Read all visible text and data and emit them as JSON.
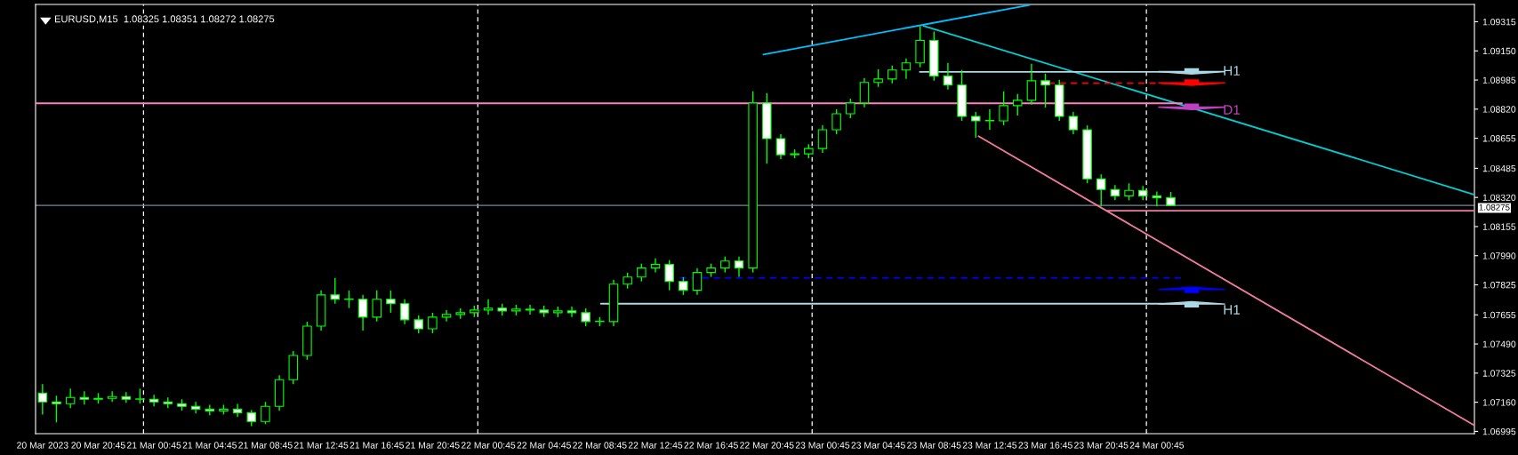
{
  "chart_data": {
    "type": "candlestick",
    "title": "EURUSD,M15  1.08325 1.08351 1.08272 1.08275",
    "color": "#00ff00",
    "x": [
      "2023-03-20T16:45",
      "2023-03-20T17:45",
      "2023-03-20T18:45",
      "2023-03-20T19:45",
      "2023-03-20T20:45",
      "2023-03-20T21:45",
      "2023-03-20T22:45",
      "2023-03-20T23:45",
      "2023-03-21T00:45",
      "2023-03-21T01:45",
      "2023-03-21T02:45",
      "2023-03-21T03:45",
      "2023-03-21T04:45",
      "2023-03-21T05:45",
      "2023-03-21T06:45",
      "2023-03-21T07:45",
      "2023-03-21T08:45",
      "2023-03-21T09:45",
      "2023-03-21T10:45",
      "2023-03-21T11:45",
      "2023-03-21T12:45",
      "2023-03-21T13:45",
      "2023-03-21T14:45",
      "2023-03-21T15:45",
      "2023-03-21T16:45",
      "2023-03-21T17:45",
      "2023-03-21T18:45",
      "2023-03-21T19:45",
      "2023-03-21T20:45",
      "2023-03-21T21:45",
      "2023-03-21T22:45",
      "2023-03-21T23:45",
      "2023-03-22T00:45",
      "2023-03-22T01:45",
      "2023-03-22T02:45",
      "2023-03-22T03:45",
      "2023-03-22T04:45",
      "2023-03-22T05:45",
      "2023-03-22T06:45",
      "2023-03-22T07:45",
      "2023-03-22T08:45",
      "2023-03-22T09:45",
      "2023-03-22T10:45",
      "2023-03-22T11:45",
      "2023-03-22T12:45",
      "2023-03-22T13:45",
      "2023-03-22T14:45",
      "2023-03-22T15:45",
      "2023-03-22T16:45",
      "2023-03-22T17:45",
      "2023-03-22T18:45",
      "2023-03-22T19:45",
      "2023-03-22T20:45",
      "2023-03-22T21:45",
      "2023-03-22T22:45",
      "2023-03-22T23:45",
      "2023-03-23T00:45",
      "2023-03-23T01:45",
      "2023-03-23T02:45",
      "2023-03-23T03:45",
      "2023-03-23T04:45",
      "2023-03-23T05:45",
      "2023-03-23T06:45",
      "2023-03-23T07:45",
      "2023-03-23T08:45",
      "2023-03-23T09:45",
      "2023-03-23T10:45",
      "2023-03-23T11:45",
      "2023-03-23T12:45",
      "2023-03-23T13:45",
      "2023-03-23T14:45",
      "2023-03-23T15:45",
      "2023-03-23T16:45",
      "2023-03-23T17:45",
      "2023-03-23T18:45",
      "2023-03-23T19:45",
      "2023-03-23T20:45",
      "2023-03-23T21:45",
      "2023-03-23T22:45",
      "2023-03-23T23:45",
      "2023-03-24T00:45",
      "2023-03-24T01:45"
    ],
    "ohlc": [
      [
        1.07212,
        1.07262,
        1.0709,
        1.07162
      ],
      [
        1.07162,
        1.07197,
        1.07046,
        1.07152
      ],
      [
        1.07152,
        1.07237,
        1.07127,
        1.07187
      ],
      [
        1.07187,
        1.07222,
        1.07147,
        1.07177
      ],
      [
        1.07177,
        1.07212,
        1.07152,
        1.07182
      ],
      [
        1.07182,
        1.07222,
        1.07162,
        1.07192
      ],
      [
        1.07192,
        1.07217,
        1.07157,
        1.07177
      ],
      [
        1.07177,
        1.07237,
        1.07152,
        1.07177
      ],
      [
        1.07177,
        1.07202,
        1.07137,
        1.07162
      ],
      [
        1.07162,
        1.07187,
        1.07127,
        1.07152
      ],
      [
        1.07152,
        1.07177,
        1.07112,
        1.07137
      ],
      [
        1.07137,
        1.07162,
        1.07096,
        1.07121
      ],
      [
        1.07121,
        1.07146,
        1.07086,
        1.07111
      ],
      [
        1.07111,
        1.07146,
        1.07091,
        1.07121
      ],
      [
        1.07121,
        1.07151,
        1.07076,
        1.07101
      ],
      [
        1.07101,
        1.07116,
        1.07025,
        1.07051
      ],
      [
        1.07051,
        1.07162,
        1.07036,
        1.07137
      ],
      [
        1.07137,
        1.07313,
        1.07112,
        1.07288
      ],
      [
        1.07288,
        1.0745,
        1.07263,
        1.07425
      ],
      [
        1.07425,
        1.07616,
        1.074,
        1.07591
      ],
      [
        1.07591,
        1.07793,
        1.07566,
        1.07768
      ],
      [
        1.07768,
        1.07864,
        1.07718,
        1.07743
      ],
      [
        1.07743,
        1.07793,
        1.07693,
        1.07743
      ],
      [
        1.07743,
        1.07768,
        1.07566,
        1.07642
      ],
      [
        1.07642,
        1.07793,
        1.07617,
        1.07743
      ],
      [
        1.07743,
        1.07793,
        1.07667,
        1.07718
      ],
      [
        1.07718,
        1.07743,
        1.07602,
        1.07627
      ],
      [
        1.07627,
        1.07652,
        1.07551,
        1.07576
      ],
      [
        1.07576,
        1.07667,
        1.07551,
        1.07642
      ],
      [
        1.07642,
        1.07682,
        1.07617,
        1.07657
      ],
      [
        1.07657,
        1.07692,
        1.07632,
        1.07667
      ],
      [
        1.07667,
        1.07707,
        1.07642,
        1.07682
      ],
      [
        1.07682,
        1.07743,
        1.07657,
        1.07693
      ],
      [
        1.07693,
        1.07718,
        1.07652,
        1.07677
      ],
      [
        1.07677,
        1.07712,
        1.07652,
        1.07687
      ],
      [
        1.07687,
        1.07712,
        1.07657,
        1.07682
      ],
      [
        1.07682,
        1.07707,
        1.07642,
        1.07667
      ],
      [
        1.07667,
        1.07702,
        1.07642,
        1.07677
      ],
      [
        1.07677,
        1.07702,
        1.07642,
        1.07667
      ],
      [
        1.07667,
        1.07692,
        1.07591,
        1.07617
      ],
      [
        1.07617,
        1.07642,
        1.07591,
        1.07617
      ],
      [
        1.07617,
        1.07854,
        1.07591,
        1.07829
      ],
      [
        1.07829,
        1.07894,
        1.07804,
        1.07869
      ],
      [
        1.07869,
        1.07945,
        1.07844,
        1.0792
      ],
      [
        1.0792,
        1.07975,
        1.07895,
        1.0794
      ],
      [
        1.0794,
        1.07965,
        1.07794,
        1.07844
      ],
      [
        1.07844,
        1.07869,
        1.07768,
        1.07794
      ],
      [
        1.07794,
        1.0792,
        1.07768,
        1.07895
      ],
      [
        1.07895,
        1.07945,
        1.0787,
        1.0792
      ],
      [
        1.0792,
        1.07985,
        1.07895,
        1.0796
      ],
      [
        1.0796,
        1.07985,
        1.0787,
        1.0792
      ],
      [
        1.0792,
        1.08921,
        1.07895,
        1.08855
      ],
      [
        1.08855,
        1.08911,
        1.08511,
        1.08653
      ],
      [
        1.08653,
        1.08678,
        1.08537,
        1.08562
      ],
      [
        1.08562,
        1.08592,
        1.08542,
        1.08567
      ],
      [
        1.08567,
        1.08622,
        1.08542,
        1.08597
      ],
      [
        1.08597,
        1.08728,
        1.08572,
        1.08703
      ],
      [
        1.08703,
        1.08819,
        1.08678,
        1.08794
      ],
      [
        1.08794,
        1.0888,
        1.08769,
        1.08855
      ],
      [
        1.08855,
        1.08996,
        1.0883,
        1.08971
      ],
      [
        1.08971,
        1.09046,
        1.08946,
        1.08991
      ],
      [
        1.08991,
        1.09067,
        1.08966,
        1.09042
      ],
      [
        1.09042,
        1.09107,
        1.08991,
        1.09082
      ],
      [
        1.09082,
        1.0929,
        1.09057,
        1.09209
      ],
      [
        1.09209,
        1.0926,
        1.08982,
        1.09007
      ],
      [
        1.09007,
        1.09082,
        1.08931,
        1.08956
      ],
      [
        1.08956,
        1.09042,
        1.08754,
        1.08779
      ],
      [
        1.08779,
        1.08804,
        1.08658,
        1.08754
      ],
      [
        1.08754,
        1.08819,
        1.08703,
        1.08754
      ],
      [
        1.08754,
        1.08921,
        1.08729,
        1.0884
      ],
      [
        1.0884,
        1.08906,
        1.08784,
        1.0887
      ],
      [
        1.0887,
        1.09077,
        1.08845,
        1.08981
      ],
      [
        1.08981,
        1.09021,
        1.08829,
        1.08956
      ],
      [
        1.08956,
        1.08986,
        1.08754,
        1.08779
      ],
      [
        1.08779,
        1.08804,
        1.08678,
        1.08703
      ],
      [
        1.08703,
        1.08728,
        1.084,
        1.08425
      ],
      [
        1.08425,
        1.0845,
        1.08269,
        1.08365
      ],
      [
        1.08365,
        1.0839,
        1.08304,
        1.08329
      ],
      [
        1.08329,
        1.084,
        1.08304,
        1.0836
      ],
      [
        1.0836,
        1.08385,
        1.08304,
        1.08329
      ],
      [
        1.08329,
        1.08354,
        1.08269,
        1.08319
      ],
      [
        1.08319,
        1.08351,
        1.08272,
        1.08275
      ]
    ],
    "series": [
      {
        "type": "line",
        "color": "#00bfff",
        "x": [
          "2023-03-22T20:30",
          "2023-03-23T15:37"
        ],
        "values": [
          1.09129,
          1.0941
        ]
      },
      {
        "type": "line",
        "color": "#00ced1",
        "x": [
          "2023-03-23T08:00",
          "2023-03-24T23:30"
        ],
        "values": [
          1.09292,
          1.08337
        ]
      },
      {
        "type": "line",
        "color": "#f07aa0",
        "x": [
          "2023-03-23T11:57",
          "2023-03-24T23:30"
        ],
        "values": [
          1.08667,
          1.07031
        ]
      },
      {
        "type": "line",
        "color": "#f07aa0",
        "x": [
          "2023-03-23T21:10",
          "2023-03-24T23:30"
        ],
        "values": [
          1.08245,
          1.08245
        ]
      },
      {
        "type": "line",
        "color": "#add8e6",
        "x": [
          "2023-03-23T07:44",
          "2023-03-24T02:33"
        ],
        "values": [
          1.09031,
          1.09031
        ]
      },
      {
        "type": "line",
        "color": "#ff0000",
        "line_style": "dashed",
        "x": [
          "2023-03-23T16:57",
          "2023-03-24T02:33"
        ],
        "values": [
          1.08967,
          1.08967
        ]
      },
      {
        "type": "line",
        "color": "#ff80c0",
        "x": [
          "2023-03-20T16:15",
          "2023-03-24T02:33"
        ],
        "values": [
          1.08853,
          1.08853
        ]
      },
      {
        "type": "line",
        "color": "#0000ff",
        "line_style": "dashed",
        "x": [
          "2023-03-22T14:31",
          "2023-03-24T02:33"
        ],
        "values": [
          1.07865,
          1.07865
        ]
      },
      {
        "type": "line",
        "color": "#add8e6",
        "x": [
          "2023-03-22T08:50",
          "2023-03-24T02:33"
        ],
        "values": [
          1.07718,
          1.07718
        ]
      }
    ],
    "ref_lines": [
      {
        "axis": "x",
        "value": "2023-03-21T00:00",
        "color": "#ffffff",
        "line_style": "dashed"
      },
      {
        "axis": "x",
        "value": "2023-03-22T00:00",
        "color": "#ffffff",
        "line_style": "dashed"
      },
      {
        "axis": "x",
        "value": "2023-03-23T00:00",
        "color": "#ffffff",
        "line_style": "dashed"
      },
      {
        "axis": "x",
        "value": "2023-03-24T00:00",
        "color": "#ffffff",
        "line_style": "dashed"
      },
      {
        "axis": "y",
        "value": 1.08275,
        "label": "1.08275",
        "color": "#778899"
      }
    ],
    "annotations": [
      "H1",
      "D1",
      "H1"
    ],
    "xlim": [
      "2023-03-20T16:15",
      "2023-03-24T23:33"
    ],
    "xticks": [
      {
        "value": "2023-03-20T16:45",
        "label": "20 Mar 2023"
      },
      {
        "value": "2023-03-20T20:45",
        "label": "20 Mar 20:45"
      },
      {
        "value": "2023-03-21T00:45",
        "label": "21 Mar 00:45"
      },
      {
        "value": "2023-03-21T04:45",
        "label": "21 Mar 04:45"
      },
      {
        "value": "2023-03-21T08:45",
        "label": "21 Mar 08:45"
      },
      {
        "value": "2023-03-21T12:45",
        "label": "21 Mar 12:45"
      },
      {
        "value": "2023-03-21T16:45",
        "label": "21 Mar 16:45"
      },
      {
        "value": "2023-03-21T20:45",
        "label": "21 Mar 20:45"
      },
      {
        "value": "2023-03-22T00:45",
        "label": "22 Mar 00:45"
      },
      {
        "value": "2023-03-22T04:45",
        "label": "22 Mar 04:45"
      },
      {
        "value": "2023-03-22T08:45",
        "label": "22 Mar 08:45"
      },
      {
        "value": "2023-03-22T12:45",
        "label": "22 Mar 12:45"
      },
      {
        "value": "2023-03-22T16:45",
        "label": "22 Mar 16:45"
      },
      {
        "value": "2023-03-22T20:45",
        "label": "22 Mar 20:45"
      },
      {
        "value": "2023-03-23T00:45",
        "label": "23 Mar 00:45"
      },
      {
        "value": "2023-03-23T04:45",
        "label": "23 Mar 04:45"
      },
      {
        "value": "2023-03-23T08:45",
        "label": "23 Mar 08:45"
      },
      {
        "value": "2023-03-23T12:45",
        "label": "23 Mar 12:45"
      },
      {
        "value": "2023-03-23T16:45",
        "label": "23 Mar 16:45"
      },
      {
        "value": "2023-03-23T20:45",
        "label": "23 Mar 20:45"
      },
      {
        "value": "2023-03-24T00:45",
        "label": "24 Mar 00:45"
      }
    ],
    "ylim": [
      1.06982,
      1.09413
    ],
    "yticks": [
      {
        "value": 1.06995,
        "label": "1.06995"
      },
      {
        "value": 1.0716,
        "label": "1.07160"
      },
      {
        "value": 1.07325,
        "label": "1.07325"
      },
      {
        "value": 1.0749,
        "label": "1.07490"
      },
      {
        "value": 1.07655,
        "label": "1.07655"
      },
      {
        "value": 1.07825,
        "label": "1.07825"
      },
      {
        "value": 1.0799,
        "label": "1.07990"
      },
      {
        "value": 1.08155,
        "label": "1.08155"
      },
      {
        "value": 1.0832,
        "label": "1.08320"
      },
      {
        "value": 1.08485,
        "label": "1.08485"
      },
      {
        "value": 1.08655,
        "label": "1.08655"
      },
      {
        "value": 1.0882,
        "label": "1.08820"
      },
      {
        "value": 1.08985,
        "label": "1.08985"
      },
      {
        "value": 1.0915,
        "label": "1.09150"
      },
      {
        "value": 1.09315,
        "label": "1.09315"
      }
    ]
  }
}
